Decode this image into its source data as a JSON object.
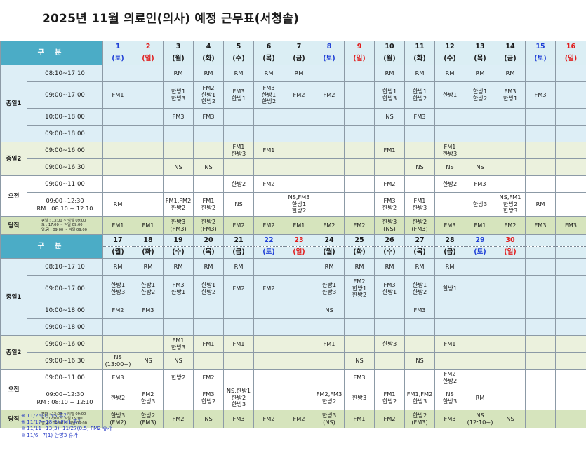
{
  "title": "2025년 11월  의료인(의사) 예정 근무표(서청솔)",
  "header_label": "구 분",
  "colors": {
    "header": "#4bacc6",
    "saturday": "#1f3fd6",
    "sunday": "#e01e1e"
  },
  "groups": {
    "g1": "종일1",
    "g2": "종일2",
    "g3": "오전",
    "g4": "당직"
  },
  "times": {
    "t1": "08:10~17:10",
    "t2": "09:00~17:00",
    "t3": "10:00~18:00",
    "t4": "09:00~18:00",
    "t5": "09:00~16:00",
    "t6": "09:00~16:30",
    "t7": "09:00~11:00",
    "t8": "09:00~12:30",
    "t8b": "RM : 08:10 ~ 12:10",
    "duty": [
      "평일 : 13:00 ~ 익일 09:00",
      "토    : 17:00 ~ 익일 09:00",
      "일,공 : 09:00 ~ 익일 09:00"
    ]
  },
  "weeks": [
    {
      "days": [
        {
          "d": "1",
          "w": "(토)",
          "c": "blue"
        },
        {
          "d": "2",
          "w": "(일)",
          "c": "red"
        },
        {
          "d": "3",
          "w": "(월)",
          "c": ""
        },
        {
          "d": "4",
          "w": "(화)",
          "c": ""
        },
        {
          "d": "5",
          "w": "(수)",
          "c": ""
        },
        {
          "d": "6",
          "w": "(목)",
          "c": ""
        },
        {
          "d": "7",
          "w": "(금)",
          "c": ""
        },
        {
          "d": "8",
          "w": "(토)",
          "c": "blue"
        },
        {
          "d": "9",
          "w": "(일)",
          "c": "red"
        },
        {
          "d": "10",
          "w": "(월)",
          "c": ""
        },
        {
          "d": "11",
          "w": "(화)",
          "c": ""
        },
        {
          "d": "12",
          "w": "(수)",
          "c": ""
        },
        {
          "d": "13",
          "w": "(목)",
          "c": ""
        },
        {
          "d": "14",
          "w": "(금)",
          "c": ""
        },
        {
          "d": "15",
          "w": "(토)",
          "c": "blue"
        },
        {
          "d": "16",
          "w": "(일)",
          "c": "red"
        }
      ],
      "rows": [
        [
          [],
          [],
          [
            "RM"
          ],
          [
            "RM"
          ],
          [
            "RM"
          ],
          [
            "RM"
          ],
          [
            "RM"
          ],
          [],
          [],
          [
            "RM"
          ],
          [
            "RM"
          ],
          [
            "RM"
          ],
          [
            "RM"
          ],
          [
            "RM"
          ],
          [],
          []
        ],
        [
          [
            "FM1"
          ],
          [],
          [
            "한방1",
            "한방3"
          ],
          [
            "FM2",
            "한방1",
            "한방2"
          ],
          [
            "FM3",
            "한방1"
          ],
          [
            "FM3",
            "한방1",
            "한방2"
          ],
          [
            "FM2"
          ],
          [
            "FM2"
          ],
          [],
          [
            "한방1",
            "한방3"
          ],
          [
            "한방1",
            "한방2"
          ],
          [
            "한방1"
          ],
          [
            "한방1",
            "한방2"
          ],
          [
            "FM3",
            "한방1"
          ],
          [
            "FM3"
          ],
          []
        ],
        [
          [],
          [],
          [
            "FM3"
          ],
          [
            "FM3"
          ],
          [],
          [],
          [],
          [],
          [],
          [
            "NS"
          ],
          [
            "FM3"
          ],
          [],
          [],
          [],
          [],
          []
        ],
        [
          [],
          [],
          [],
          [],
          [],
          [],
          [],
          [],
          [],
          [],
          [],
          [],
          [],
          [],
          [],
          []
        ],
        [
          [],
          [],
          [],
          [],
          [
            "FM1",
            "한방3"
          ],
          [
            "FM1"
          ],
          [],
          [],
          [],
          [
            "FM1"
          ],
          [],
          [
            "FM1",
            "한방3"
          ],
          [],
          [],
          [],
          []
        ],
        [
          [],
          [],
          [
            "NS"
          ],
          [
            "NS"
          ],
          [],
          [],
          [],
          [],
          [],
          [],
          [
            "NS"
          ],
          [
            "NS"
          ],
          [
            "NS"
          ],
          [],
          [],
          []
        ],
        [
          [],
          [],
          [],
          [],
          [
            "한방2"
          ],
          [
            "FM2"
          ],
          [],
          [],
          [],
          [
            "FM2"
          ],
          [],
          [
            "한방2"
          ],
          [
            "FM3"
          ],
          [],
          [],
          []
        ],
        [
          [
            "RM"
          ],
          [],
          [
            "FM1,FM2",
            "한방2"
          ],
          [
            "FM1",
            "한방2"
          ],
          [
            "NS"
          ],
          [],
          [
            "NS,FM3",
            "한방1",
            "한방2"
          ],
          [],
          [],
          [
            "FM3",
            "한방2"
          ],
          [
            "FM1",
            "한방3"
          ],
          [],
          [
            "한방3"
          ],
          [
            "NS,FM1",
            "한방2",
            "한방3"
          ],
          [
            "RM"
          ],
          []
        ],
        [
          [
            "FM1"
          ],
          [
            "FM1"
          ],
          [
            "한방3",
            "(FM3)"
          ],
          [
            "한방2",
            "(FM3)"
          ],
          [
            "FM2"
          ],
          [
            "FM2"
          ],
          [
            "FM1"
          ],
          [
            "FM2"
          ],
          [
            "FM2"
          ],
          [
            "한방3",
            "(NS)"
          ],
          [
            "한방2",
            "(FM3)"
          ],
          [
            "FM3"
          ],
          [
            "FM1"
          ],
          [
            "FM2"
          ],
          [
            "FM3"
          ],
          [
            "FM3"
          ]
        ]
      ]
    },
    {
      "days": [
        {
          "d": "17",
          "w": "(월)",
          "c": ""
        },
        {
          "d": "18",
          "w": "(화)",
          "c": ""
        },
        {
          "d": "19",
          "w": "(수)",
          "c": ""
        },
        {
          "d": "20",
          "w": "(목)",
          "c": ""
        },
        {
          "d": "21",
          "w": "(금)",
          "c": ""
        },
        {
          "d": "22",
          "w": "(토)",
          "c": "blue"
        },
        {
          "d": "23",
          "w": "(일)",
          "c": "red"
        },
        {
          "d": "24",
          "w": "(월)",
          "c": ""
        },
        {
          "d": "25",
          "w": "(화)",
          "c": ""
        },
        {
          "d": "26",
          "w": "(수)",
          "c": ""
        },
        {
          "d": "27",
          "w": "(목)",
          "c": ""
        },
        {
          "d": "28",
          "w": "(금)",
          "c": ""
        },
        {
          "d": "29",
          "w": "(토)",
          "c": "blue"
        },
        {
          "d": "30",
          "w": "(일)",
          "c": "red"
        },
        {
          "d": "",
          "w": "",
          "c": ""
        },
        {
          "d": "",
          "w": "",
          "c": ""
        }
      ],
      "rows": [
        [
          [
            "RM"
          ],
          [
            "RM"
          ],
          [
            "RM"
          ],
          [
            "RM"
          ],
          [
            "RM"
          ],
          [],
          [],
          [
            "RM"
          ],
          [
            "RM"
          ],
          [
            "RM"
          ],
          [
            "RM"
          ],
          [
            "RM"
          ],
          [],
          [],
          [],
          []
        ],
        [
          [
            "한방1",
            "한방3"
          ],
          [
            "한방1",
            "한방2"
          ],
          [
            "FM3",
            "한방1"
          ],
          [
            "한방1",
            "한방2"
          ],
          [
            "FM2"
          ],
          [
            "FM2"
          ],
          [],
          [
            "한방1",
            "한방3"
          ],
          [
            "FM2",
            "한방1",
            "한방2"
          ],
          [
            "FM3",
            "한방1"
          ],
          [
            "한방1",
            "한방2"
          ],
          [
            "한방1"
          ],
          [],
          [],
          [],
          []
        ],
        [
          [
            "FM2"
          ],
          [
            "FM3"
          ],
          [],
          [],
          [],
          [],
          [],
          [
            "NS"
          ],
          [],
          [],
          [
            "FM3"
          ],
          [],
          [],
          [],
          [],
          []
        ],
        [
          [],
          [],
          [],
          [],
          [],
          [],
          [],
          [],
          [],
          [],
          [],
          [],
          [],
          [],
          [],
          []
        ],
        [
          [],
          [],
          [
            "FM1",
            "한방3"
          ],
          [
            "FM1"
          ],
          [
            "FM1"
          ],
          [],
          [],
          [
            "FM1"
          ],
          [],
          [
            "한방3"
          ],
          [],
          [
            "FM1"
          ],
          [],
          [],
          [],
          []
        ],
        [
          [
            "NS",
            "(13:00~)"
          ],
          [
            "NS"
          ],
          [
            "NS"
          ],
          [],
          [],
          [],
          [],
          [],
          [
            "NS"
          ],
          [],
          [
            "NS"
          ],
          [],
          [],
          [],
          [],
          []
        ],
        [
          [
            "FM3"
          ],
          [],
          [
            "한방2"
          ],
          [
            "FM2"
          ],
          [],
          [],
          [],
          [],
          [
            "FM3"
          ],
          [],
          [],
          [
            "FM2",
            "한방2"
          ],
          [],
          [],
          [],
          []
        ],
        [
          [
            "한방2"
          ],
          [
            "FM2",
            "한방3"
          ],
          [],
          [
            "FM3",
            "한방2"
          ],
          [
            "NS,한방1",
            "한방2",
            "한방3"
          ],
          [],
          [],
          [
            "FM2,FM3",
            "한방2"
          ],
          [
            "한방3"
          ],
          [
            "FM1",
            "한방2"
          ],
          [
            "FM1,FM2",
            "한방3"
          ],
          [
            "NS",
            "한방3"
          ],
          [
            "RM"
          ],
          [],
          [],
          []
        ],
        [
          [
            "한방3",
            "(FM2)"
          ],
          [
            "한방2",
            "(FM3)"
          ],
          [
            "FM2"
          ],
          [
            "NS"
          ],
          [
            "FM3"
          ],
          [
            "FM2"
          ],
          [
            "FM2"
          ],
          [
            "한방3",
            "(NS)"
          ],
          [
            "FM1"
          ],
          [
            "FM2"
          ],
          [
            "한방2",
            "(FM3)"
          ],
          [
            "FM3"
          ],
          [
            "NS",
            "(12:10~)"
          ],
          [
            "NS"
          ],
          [],
          []
        ]
      ]
    }
  ],
  "notes": [
    "※ 11/26(1) NS 휴가",
    "※ 11/17~18(2) FM1 휴가",
    "※ 11/11~13(3), 11/27(0.5) FM2 휴가",
    "※ 11/6~7(1) 한방3 휴가"
  ]
}
